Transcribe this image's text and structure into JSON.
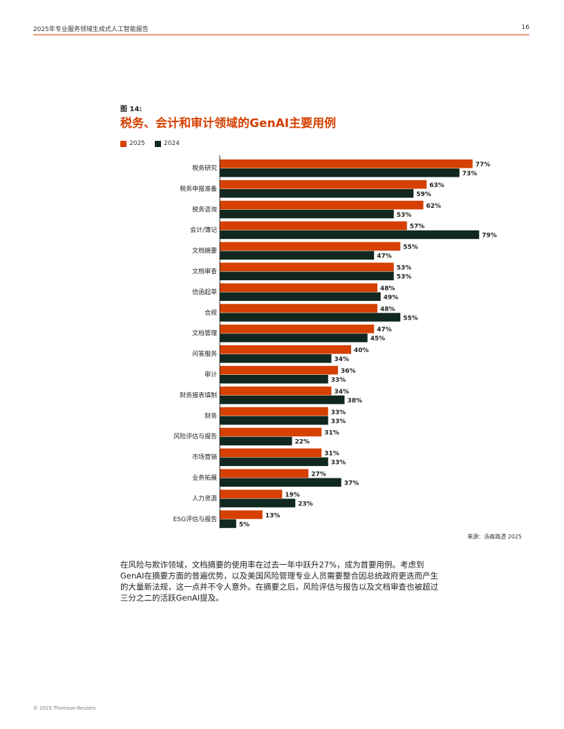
{
  "header": {
    "title": "2025年专业服务领域生成式人工智能报告",
    "page_number": "16"
  },
  "figure": {
    "label": "图 14:",
    "title": "税务、会计和审计领域的GenAI主要用例"
  },
  "colors": {
    "accent": "#d64000",
    "series_2025": "#d64000",
    "series_2024": "#10281f"
  },
  "chart_data": {
    "type": "bar",
    "orientation": "horizontal",
    "title": "税务、会计和审计领域的GenAI主要用例",
    "categories": [
      "税务研究",
      "税务申报准备",
      "税务咨询",
      "会计/簿记",
      "文档摘要",
      "文档审查",
      "信函起草",
      "合规",
      "文档管理",
      "问答服务",
      "审计",
      "财务报表填制",
      "财务",
      "风险评估与报告",
      "市场营销",
      "业务拓展",
      "人力资源",
      "ESG评估与报告"
    ],
    "series": [
      {
        "name": "2025",
        "color": "#d64000",
        "values": [
          77,
          63,
          62,
          57,
          55,
          53,
          48,
          48,
          47,
          40,
          36,
          34,
          33,
          31,
          31,
          27,
          19,
          13
        ]
      },
      {
        "name": "2024",
        "color": "#10281f",
        "values": [
          73,
          59,
          53,
          79,
          47,
          53,
          49,
          55,
          45,
          34,
          33,
          38,
          33,
          22,
          33,
          37,
          23,
          5
        ]
      }
    ],
    "xlim": [
      0,
      80
    ],
    "value_suffix": "%",
    "legend_position": "top-left",
    "grid": false
  },
  "source": "来源：汤森路透 2025",
  "body_text": "在风险与欺诈领域，文档摘要的使用率在过去一年中跃升27%，成为首要用例。考虑到GenAI在摘要方面的普遍优势，以及美国风险管理专业人员需要整合因总统政府更迭而产生的大量新法规，这一点并不令人意外。在摘要之后，风险评估与报告以及文档审查也被超过三分之二的活跃GenAI提及。",
  "footer": "© 2025 Thomson Reuters"
}
